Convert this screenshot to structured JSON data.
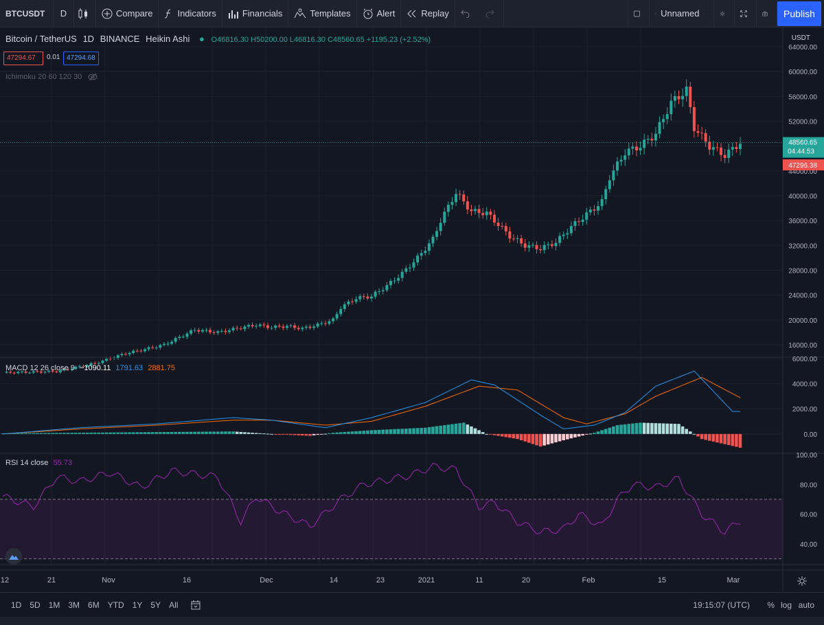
{
  "toolbar": {
    "symbol": "BTCUSDT",
    "interval": "D",
    "compare_label": "Compare",
    "indicators_label": "Indicators",
    "financials_label": "Financials",
    "templates_label": "Templates",
    "alert_label": "Alert",
    "replay_label": "Replay",
    "layout_name": "Unnamed",
    "publish_label": "Publish"
  },
  "legend": {
    "title": "Bitcoin / TetherUS",
    "interval": "1D",
    "exchange": "BINANCE",
    "chart_style": "Heikin Ashi",
    "ohlc": "O46816.30 H50200.00 L46816.30 C48560.65 +1195.23 (+2.52%)",
    "bid": "47294.67",
    "spread": "0.01",
    "ask": "47294.68",
    "ichimoku": "Ichimoku 20 60 120 30"
  },
  "macd_legend": {
    "label": "MACD 12 26 close 9",
    "hist": "−1090.11",
    "macd": "1791.63",
    "signal": "2881.75"
  },
  "rsi_legend": {
    "label": "RSI 14 close",
    "value": "55.73"
  },
  "price_axis": {
    "currency": "USDT",
    "last_price": "48560.65",
    "countdown": "04:44:53",
    "red_price": "47296.38"
  },
  "time_axis": {
    "ticks": [
      "12",
      "21",
      "Nov",
      "16",
      "Dec",
      "14",
      "23",
      "2021",
      "11",
      "20",
      "Feb",
      "15",
      "Mar"
    ]
  },
  "bottom_bar": {
    "ranges": [
      "1D",
      "5D",
      "1M",
      "3M",
      "6M",
      "YTD",
      "1Y",
      "5Y",
      "All"
    ],
    "utc_time": "19:15:07 (UTC)",
    "percent_label": "%",
    "log_label": "log",
    "auto_label": "auto"
  },
  "colors": {
    "up": "#26a69a",
    "down": "#ef5350",
    "macd": "#2196f3",
    "signal": "#ff6d00",
    "rsi": "#9c27b0",
    "background": "#131722"
  },
  "chart_data": [
    {
      "type": "candlestick",
      "title": "Bitcoin / TetherUS",
      "ylabel": "USDT",
      "ylim": [
        12000,
        66000
      ],
      "yticks": [
        "16000.00",
        "20000.00",
        "24000.00",
        "28000.00",
        "32000.00",
        "36000.00",
        "40000.00",
        "44000.00",
        "48000.00",
        "52000.00",
        "56000.00",
        "60000.00",
        "64000.00"
      ],
      "anchors": [
        [
          0,
          11500
        ],
        [
          14,
          11700
        ],
        [
          18,
          12200
        ],
        [
          24,
          13000
        ],
        [
          32,
          14600
        ],
        [
          38,
          15400
        ],
        [
          42,
          16000
        ],
        [
          46,
          17200
        ],
        [
          50,
          18400
        ],
        [
          56,
          18000
        ],
        [
          60,
          18500
        ],
        [
          66,
          19200
        ],
        [
          70,
          18800
        ],
        [
          74,
          19000
        ],
        [
          78,
          18600
        ],
        [
          82,
          19200
        ],
        [
          86,
          20000
        ],
        [
          88,
          22000
        ],
        [
          92,
          23500
        ],
        [
          96,
          23800
        ],
        [
          100,
          25500
        ],
        [
          104,
          27500
        ],
        [
          108,
          30000
        ],
        [
          112,
          33000
        ],
        [
          114,
          36000
        ],
        [
          118,
          40500
        ],
        [
          120,
          39000
        ],
        [
          122,
          37500
        ],
        [
          126,
          37200
        ],
        [
          128,
          36000
        ],
        [
          132,
          33500
        ],
        [
          136,
          32000
        ],
        [
          140,
          31500
        ],
        [
          144,
          32500
        ],
        [
          148,
          35000
        ],
        [
          152,
          37000
        ],
        [
          156,
          39000
        ],
        [
          158,
          43000
        ],
        [
          162,
          47000
        ],
        [
          166,
          48000
        ],
        [
          170,
          50000
        ],
        [
          174,
          55000
        ],
        [
          178,
          57000
        ],
        [
          180,
          51000
        ],
        [
          184,
          48000
        ],
        [
          188,
          46500
        ],
        [
          192,
          48560
        ]
      ]
    },
    {
      "type": "line+bar",
      "title": "MACD 12 26 close 9",
      "ylim": [
        -2000,
        6000
      ],
      "yticks": [
        "0.00",
        "2000.00",
        "4000.00",
        "6000.00"
      ],
      "macd": [
        [
          0,
          0
        ],
        [
          20,
          500
        ],
        [
          40,
          800
        ],
        [
          60,
          1300
        ],
        [
          70,
          1100
        ],
        [
          84,
          500
        ],
        [
          96,
          1300
        ],
        [
          110,
          2500
        ],
        [
          122,
          4300
        ],
        [
          128,
          3900
        ],
        [
          140,
          1500
        ],
        [
          146,
          400
        ],
        [
          154,
          700
        ],
        [
          162,
          1700
        ],
        [
          170,
          3800
        ],
        [
          180,
          5000
        ],
        [
          190,
          1791
        ]
      ],
      "signal": [
        [
          0,
          0
        ],
        [
          20,
          400
        ],
        [
          40,
          700
        ],
        [
          60,
          1100
        ],
        [
          70,
          1100
        ],
        [
          84,
          700
        ],
        [
          96,
          1000
        ],
        [
          110,
          2200
        ],
        [
          124,
          3800
        ],
        [
          134,
          3500
        ],
        [
          146,
          1300
        ],
        [
          152,
          800
        ],
        [
          162,
          1600
        ],
        [
          170,
          3000
        ],
        [
          182,
          4500
        ],
        [
          192,
          2881
        ]
      ],
      "hist": [
        [
          0,
          50
        ],
        [
          20,
          100
        ],
        [
          40,
          150
        ],
        [
          60,
          200
        ],
        [
          70,
          0
        ],
        [
          80,
          -150
        ],
        [
          86,
          100
        ],
        [
          96,
          300
        ],
        [
          110,
          500
        ],
        [
          120,
          900
        ],
        [
          126,
          0
        ],
        [
          134,
          -400
        ],
        [
          140,
          -1000
        ],
        [
          146,
          -500
        ],
        [
          154,
          100
        ],
        [
          160,
          700
        ],
        [
          166,
          900
        ],
        [
          176,
          800
        ],
        [
          182,
          -400
        ],
        [
          192,
          -1090
        ]
      ]
    },
    {
      "type": "line",
      "title": "RSI 14 close",
      "ylim": [
        30,
        100
      ],
      "yticks": [
        "40.00",
        "60.00",
        "80.00",
        "100.00"
      ],
      "band": [
        30,
        70
      ],
      "rsi": [
        [
          0,
          72
        ],
        [
          8,
          65
        ],
        [
          14,
          85
        ],
        [
          20,
          82
        ],
        [
          28,
          88
        ],
        [
          36,
          78
        ],
        [
          44,
          89
        ],
        [
          56,
          85
        ],
        [
          62,
          55
        ],
        [
          66,
          72
        ],
        [
          72,
          62
        ],
        [
          80,
          52
        ],
        [
          88,
          70
        ],
        [
          94,
          80
        ],
        [
          100,
          83
        ],
        [
          106,
          86
        ],
        [
          112,
          92
        ],
        [
          118,
          90
        ],
        [
          124,
          65
        ],
        [
          128,
          68
        ],
        [
          134,
          55
        ],
        [
          140,
          48
        ],
        [
          146,
          50
        ],
        [
          150,
          60
        ],
        [
          156,
          52
        ],
        [
          160,
          70
        ],
        [
          164,
          80
        ],
        [
          170,
          78
        ],
        [
          176,
          84
        ],
        [
          182,
          60
        ],
        [
          188,
          48
        ],
        [
          192,
          55.73
        ]
      ]
    }
  ]
}
